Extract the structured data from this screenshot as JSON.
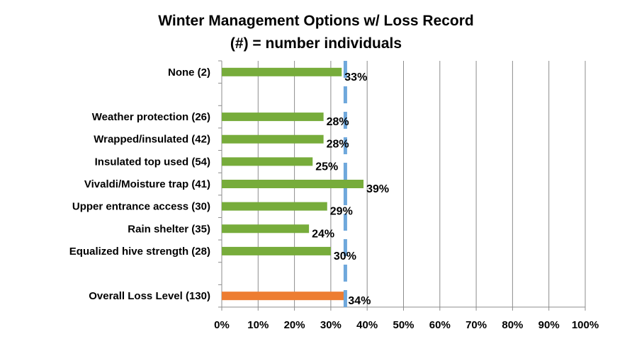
{
  "chart_data": {
    "type": "bar",
    "orientation": "horizontal",
    "title": "Winter Management Options w/ Loss Record",
    "subtitle": "(#) = number individuals",
    "categories": [
      "None (2)",
      "",
      "Weather protection (26)",
      "Wrapped/insulated (42)",
      "Insulated top used (54)",
      "Vivaldi/Moisture trap (41)",
      "Upper entrance access (30)",
      "Rain shelter (35)",
      "Equalized hive strength (28)",
      "",
      "Overall Loss Level (130)"
    ],
    "values": [
      33,
      null,
      28,
      28,
      25,
      39,
      29,
      24,
      30,
      null,
      34
    ],
    "data_labels": [
      "33%",
      "",
      "28%",
      "28%",
      "25%",
      "39%",
      "29%",
      "24%",
      "30%",
      "",
      "34%"
    ],
    "bar_colors": [
      "#77ac3b",
      "",
      "#77ac3b",
      "#77ac3b",
      "#77ac3b",
      "#77ac3b",
      "#77ac3b",
      "#77ac3b",
      "#77ac3b",
      "",
      "#ed7d31"
    ],
    "xlim": [
      0,
      100
    ],
    "x_ticks": [
      "0%",
      "10%",
      "20%",
      "30%",
      "40%",
      "50%",
      "60%",
      "70%",
      "80%",
      "90%",
      "100%"
    ],
    "reference_line": {
      "value": 34,
      "style": "dashed",
      "color": "#6fa8dc"
    },
    "grid": true,
    "legend": "none"
  }
}
